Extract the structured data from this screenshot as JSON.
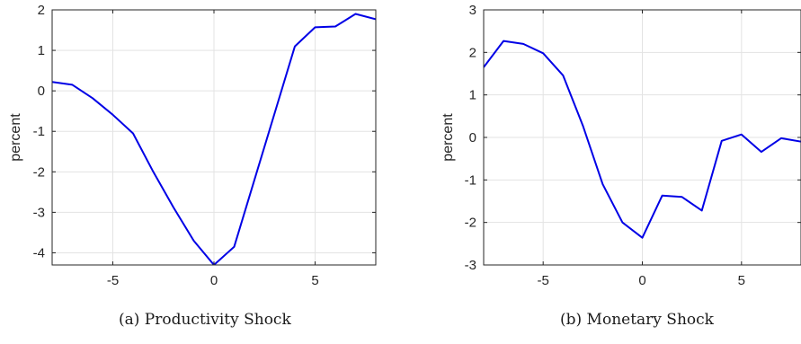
{
  "chart_data": [
    {
      "type": "line",
      "caption": "(a)  Productivity Shock",
      "ylabel": "percent",
      "xlim": [
        -8,
        8
      ],
      "ylim": [
        -4.3,
        2
      ],
      "xticks": [
        -5,
        0,
        5
      ],
      "yticks": [
        -4,
        -3,
        -2,
        -1,
        0,
        1,
        2
      ],
      "grid": true,
      "color": "#0000e6",
      "series": [
        {
          "x": [
            -8,
            -7,
            -6,
            -5,
            -4,
            -3,
            -2,
            -1,
            0,
            1,
            2,
            3,
            4,
            5,
            6,
            7,
            8
          ],
          "values": [
            0.22,
            0.15,
            -0.18,
            -0.59,
            -1.05,
            -2.0,
            -2.88,
            -3.7,
            -4.3,
            -3.85,
            -2.2,
            -0.55,
            1.1,
            1.57,
            1.59,
            1.9,
            1.77
          ]
        }
      ]
    },
    {
      "type": "line",
      "caption": "(b)  Monetary Shock",
      "ylabel": "percent",
      "xlim": [
        -8,
        8
      ],
      "ylim": [
        -3,
        3
      ],
      "xticks": [
        -5,
        0,
        5
      ],
      "yticks": [
        -3,
        -2,
        -1,
        0,
        1,
        2,
        3
      ],
      "grid": true,
      "color": "#0000e6",
      "series": [
        {
          "x": [
            -8,
            -7,
            -6,
            -5,
            -4,
            -3,
            -2,
            -1,
            0,
            1,
            2,
            3,
            4,
            5,
            6,
            7,
            8
          ],
          "values": [
            1.65,
            2.27,
            2.2,
            1.98,
            1.46,
            0.28,
            -1.1,
            -2.0,
            -2.36,
            -1.37,
            -1.4,
            -1.72,
            -0.08,
            0.07,
            -0.34,
            -0.02,
            -0.1
          ]
        }
      ]
    }
  ]
}
